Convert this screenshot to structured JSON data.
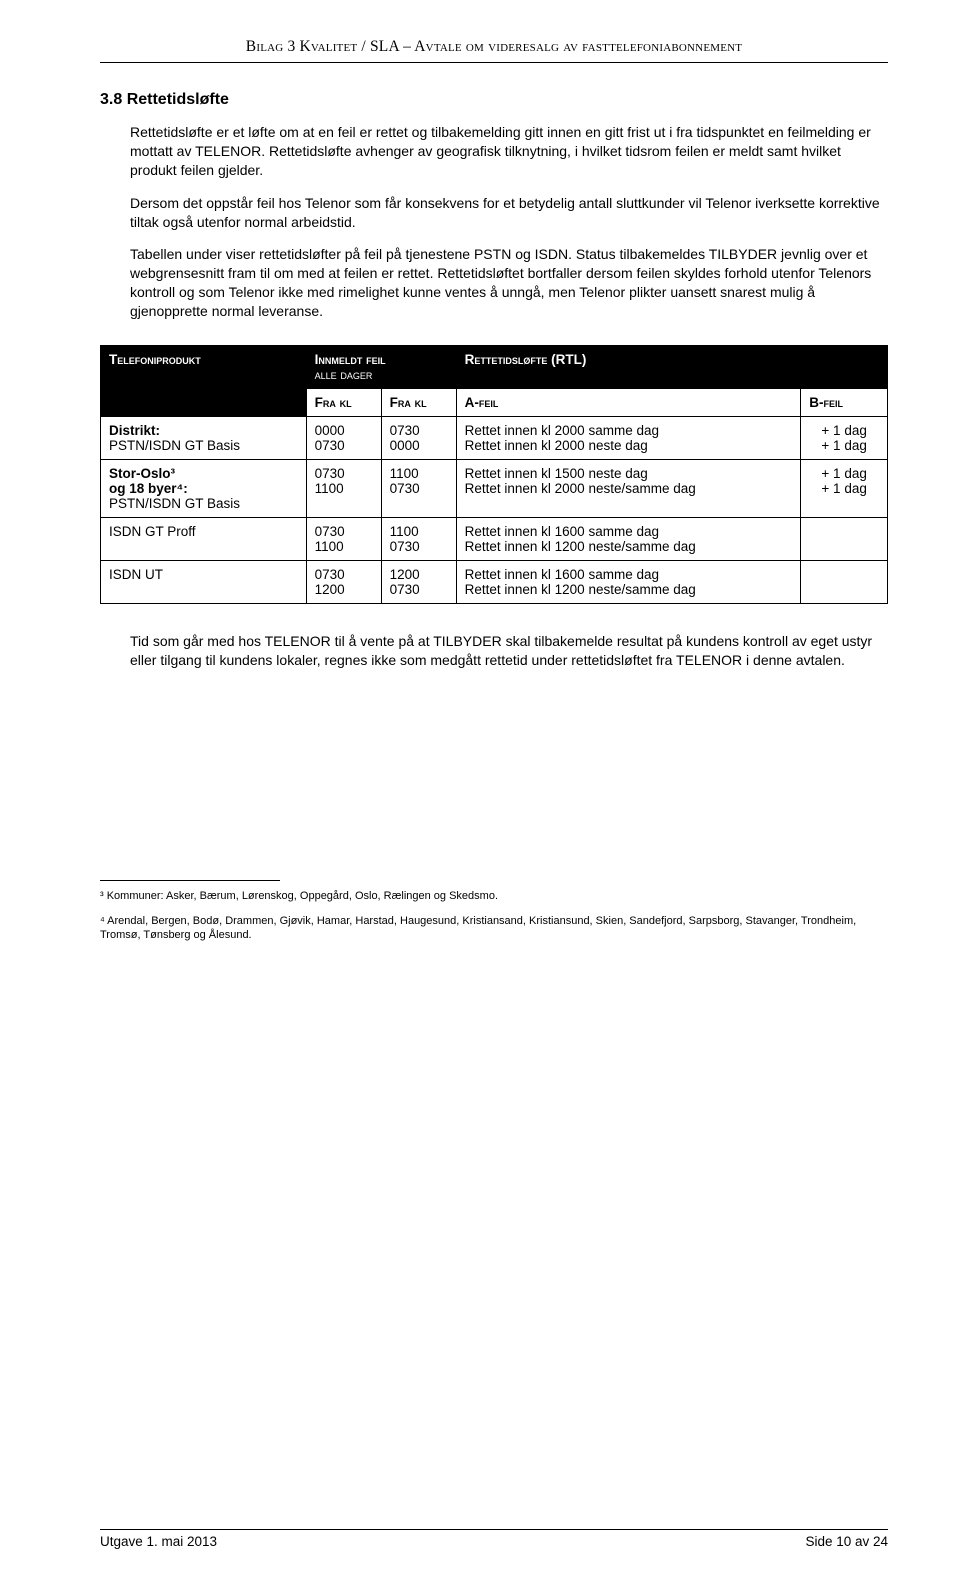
{
  "header": {
    "text_caps1": "B",
    "text_sc1": "ilag",
    "text_caps2": " 3 K",
    "text_sc2": "valitet",
    "text_caps3": " / SLA ",
    "dash": "–",
    "text_caps4": " A",
    "text_sc4": "vtale om videresalg av fasttelefoniabonnement"
  },
  "section": {
    "heading": "3.8 Rettetidsløfte",
    "p1": "Rettetidsløfte er et løfte om at en feil er rettet og tilbakemelding gitt innen en gitt frist ut i fra tidspunktet en feilmelding er mottatt av TELENOR. Rettetidsløfte avhenger av geografisk tilknytning, i hvilket tidsrom feilen er meldt samt hvilket produkt feilen gjelder.",
    "p2": "Dersom det oppstår feil hos Telenor som får konsekvens for et betydelig antall sluttkunder vil Telenor iverksette korrektive tiltak også utenfor normal arbeidstid.",
    "p3": "Tabellen under viser rettetidsløfter på feil på tjenestene PSTN og ISDN. Status tilbakemeldes TILBYDER jevnlig over et webgrensesnitt fram til om med at feilen er rettet. Rettetidsløftet bortfaller dersom feilen skyldes forhold utenfor Telenors kontroll og som Telenor ikke med rimelighet kunne ventes å unngå, men Telenor plikter uansett snarest mulig å gjenopprette normal leveranse."
  },
  "table": {
    "h_product": "Telefoniprodukt",
    "h_innmeldt": "Innmeldt feil",
    "h_alledager": "alle dager",
    "h_rtl": "Rettetidsløfte (RTL)",
    "h_frakl": "Fra kl",
    "h_afeil": "A-feil",
    "h_bfeil": "B-feil",
    "rows": [
      {
        "label_bold": "Distrikt:",
        "label": "PSTN/ISDN GT Basis",
        "fra1a": "0000",
        "fra1b": "0730",
        "fra2a": "0730",
        "fra2b": "0000",
        "afeil": "Rettet innen kl 2000 samme dag\nRettet innen kl 2000 neste dag",
        "bfeil": "+ 1 dag\n+ 1 dag"
      },
      {
        "label_bold": "Stor-Oslo³\nog 18 byer⁴:",
        "label": "PSTN/ISDN GT Basis",
        "fra1a": "0730",
        "fra1b": "1100",
        "fra2a": "1100",
        "fra2b": "0730",
        "afeil": "Rettet innen kl 1500 neste dag\nRettet innen kl 2000 neste/samme dag",
        "bfeil": "+ 1 dag\n+ 1 dag"
      },
      {
        "label_bold": "",
        "label": "ISDN GT Proff",
        "fra1a": "0730",
        "fra1b": "1100",
        "fra2a": "1100",
        "fra2b": "0730",
        "afeil": "Rettet innen kl 1600 samme dag\nRettet innen kl 1200 neste/samme dag",
        "bfeil": ""
      },
      {
        "label_bold": "",
        "label": "ISDN UT",
        "fra1a": "0730",
        "fra1b": "1200",
        "fra2a": "1200",
        "fra2b": "0730",
        "afeil": "Rettet innen kl 1600 samme dag\nRettet innen kl 1200 neste/samme dag",
        "bfeil": ""
      }
    ]
  },
  "after_table": "Tid som går med hos TELENOR til å vente på at TILBYDER skal tilbakemelde resultat på kundens kontroll av eget ustyr eller tilgang til kundens lokaler, regnes ikke som medgått rettetid under rettetidsløftet fra TELENOR i denne avtalen.",
  "footnotes": {
    "fn3": "³ Kommuner: Asker, Bærum, Lørenskog, Oppegård, Oslo, Rælingen og Skedsmo.",
    "fn4": "⁴ Arendal, Bergen, Bodø, Drammen, Gjøvik, Hamar, Harstad, Haugesund, Kristiansand, Kristiansund, Skien, Sandefjord, Sarpsborg, Stavanger, Trondheim, Tromsø, Tønsberg og Ålesund."
  },
  "footer": {
    "left": "Utgave 1. mai 2013",
    "right": "Side 10 av 24"
  }
}
